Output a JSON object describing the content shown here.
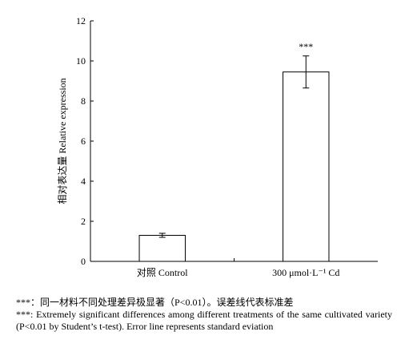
{
  "chart_data": {
    "type": "bar",
    "ylabel": "相对表达量 Relative expression",
    "categories": [
      "对照 Control",
      "300 μmol·L⁻¹ Cd"
    ],
    "values": [
      1.3,
      9.45
    ],
    "errors": [
      0.1,
      0.8
    ],
    "annotation": "***",
    "color": "#ffffff",
    "ylim": [
      0,
      12
    ],
    "yticks": [
      0,
      2,
      4,
      6,
      8,
      10,
      12
    ],
    "grid": false
  },
  "caption": {
    "zh": "***：同一材料不同处理差异极显著（P<0.01）。误差线代表标准差",
    "en": "***: Extremely significant differences among different treatments of the same cultivated variety (P<0.01 by Student’s t-test). Error line represents standard eviation"
  }
}
